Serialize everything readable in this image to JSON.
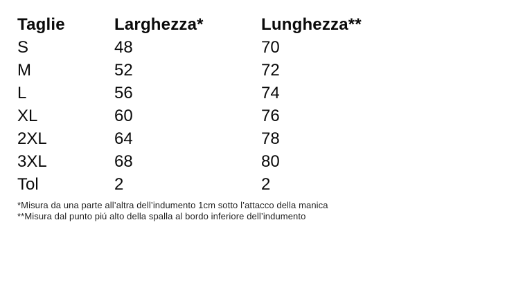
{
  "page": {
    "background_color": "#ffffff",
    "text_color": "#0a0a0a",
    "footnote_color": "#1f1f1f"
  },
  "size_table": {
    "columns": [
      "Taglie",
      "Larghezza*",
      "Lunghezza**"
    ],
    "rows": [
      [
        "S",
        "48",
        "70"
      ],
      [
        "M",
        "52",
        "72"
      ],
      [
        "L",
        "56",
        "74"
      ],
      [
        "XL",
        "60",
        "76"
      ],
      [
        "2XL",
        "64",
        "78"
      ],
      [
        "3XL",
        "68",
        "80"
      ],
      [
        "Tol",
        "2",
        "2"
      ]
    ]
  },
  "footnotes": [
    "*Misura da una parte all’altra dell’indumento 1cm sotto l’attacco della manica",
    "**Misura dal punto piú alto della spalla al bordo inferiore dell’indumento"
  ]
}
